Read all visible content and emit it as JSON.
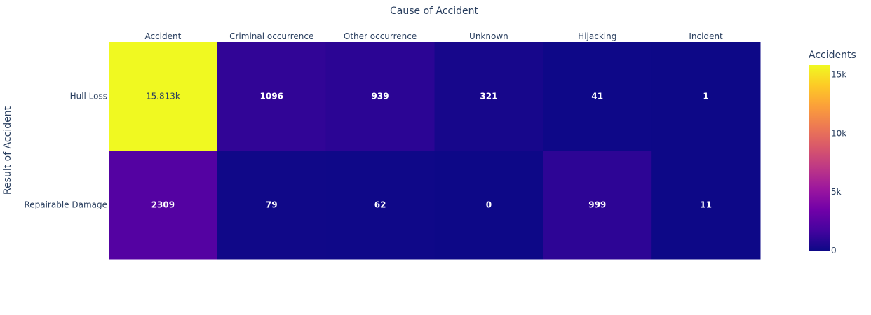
{
  "chart_data": {
    "type": "heatmap",
    "xlabel": "Cause of Accident",
    "ylabel": "Result of Accident",
    "x_categories": [
      "Accident",
      "Criminal occurrence",
      "Other occurrence",
      "Unknown",
      "Hijacking",
      "Incident"
    ],
    "y_categories": [
      "Hull Loss",
      "Repairable Damage"
    ],
    "values": [
      [
        15813,
        1096,
        939,
        321,
        41,
        1
      ],
      [
        2309,
        79,
        62,
        0,
        999,
        11
      ]
    ],
    "value_labels": [
      [
        "15.813k",
        "1096",
        "939",
        "321",
        "41",
        "1"
      ],
      [
        "2309",
        "79",
        "62",
        "0",
        "999",
        "11"
      ]
    ],
    "colorbar": {
      "title": "Accidents",
      "range": [
        0,
        15813
      ],
      "tick_values": [
        0,
        5000,
        10000,
        15000
      ],
      "tick_labels": [
        "0",
        "5k",
        "10k",
        "15k"
      ]
    },
    "colorscale": [
      "#0d0887",
      "#46039f",
      "#7201a8",
      "#9c179e",
      "#bd3786",
      "#d8576b",
      "#ed7953",
      "#fb9f3a",
      "#fdca26",
      "#f0f921"
    ],
    "x_axis_position": "top"
  }
}
